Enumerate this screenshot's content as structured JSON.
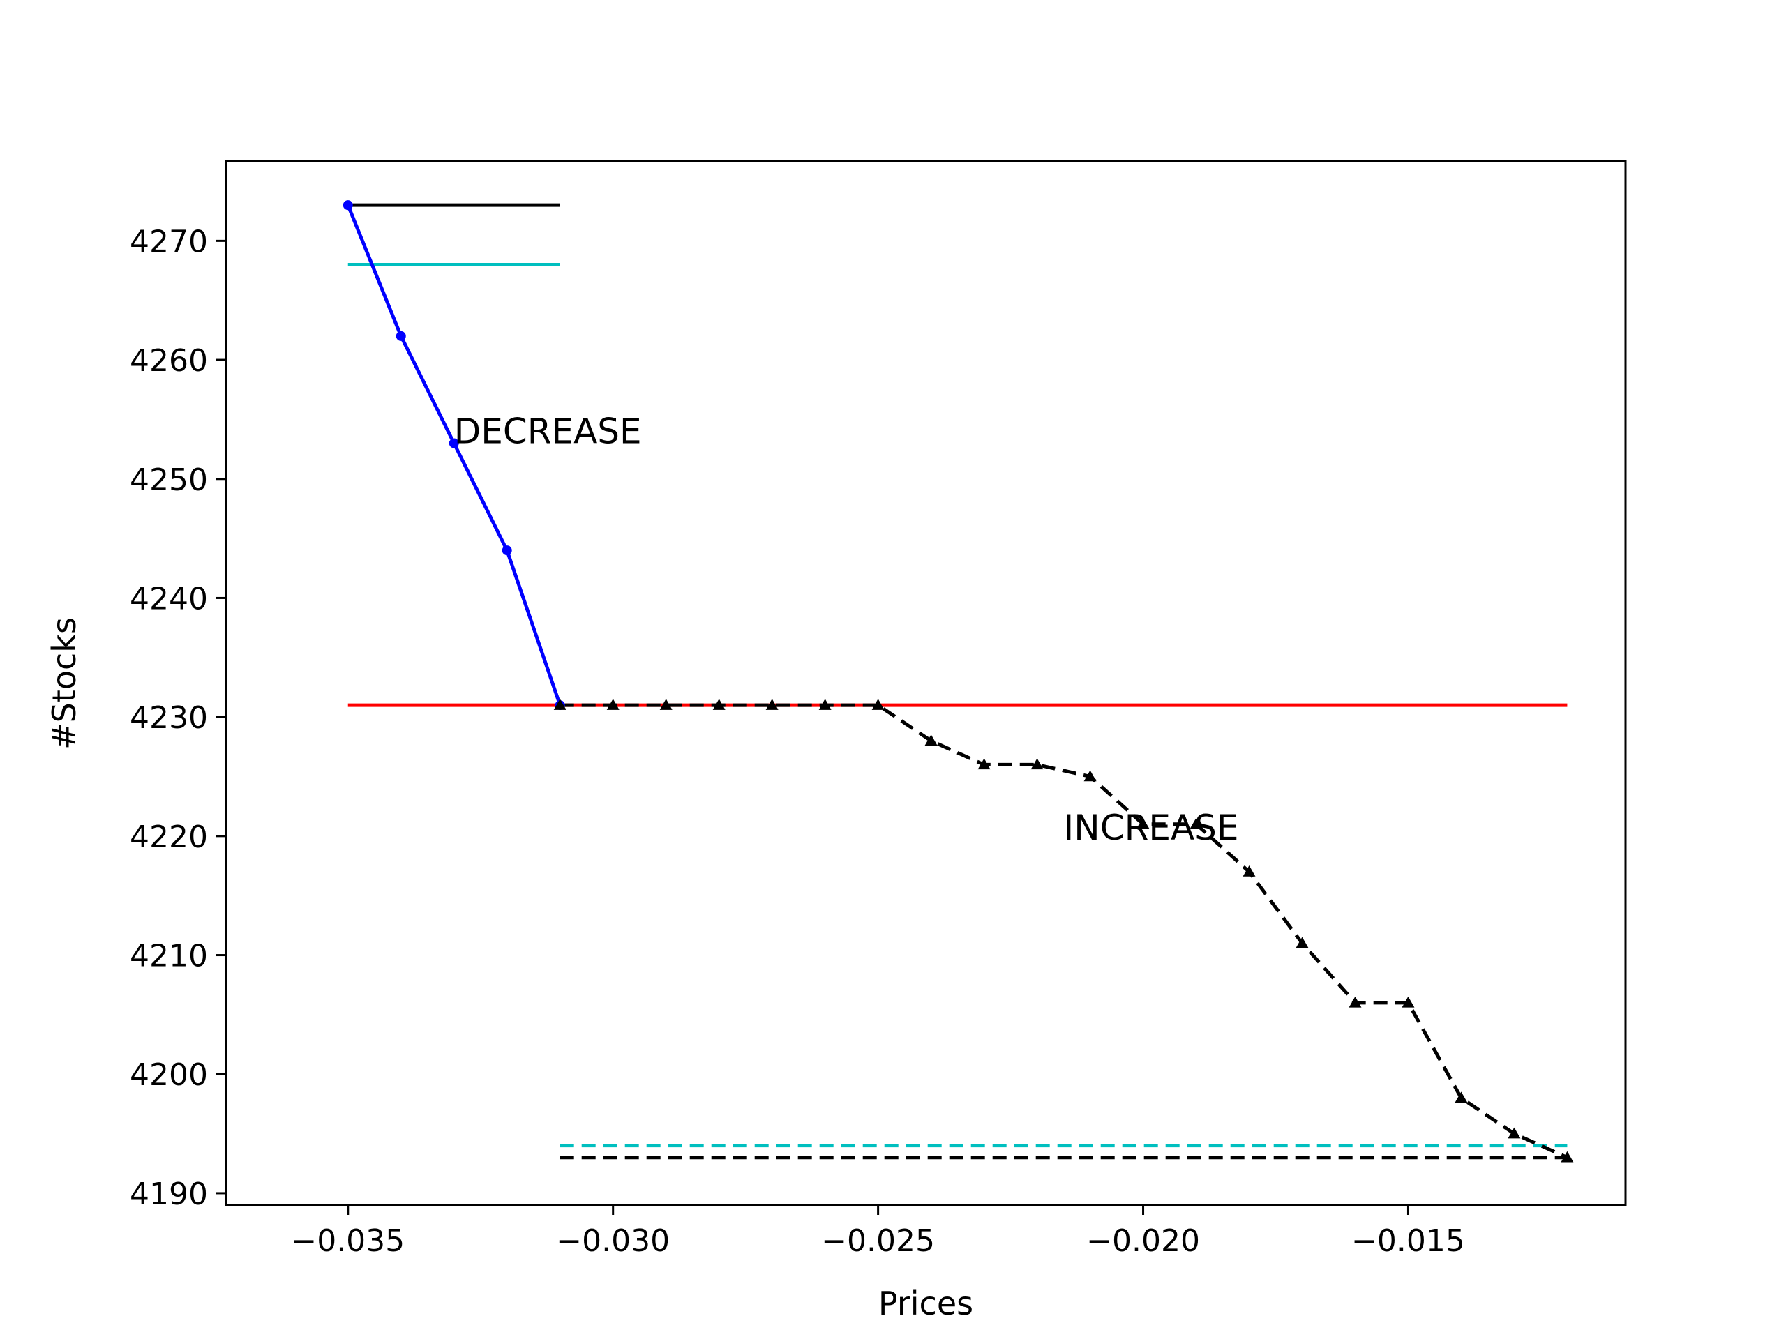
{
  "chart_data": {
    "type": "line",
    "title": "",
    "xlabel": "Prices",
    "ylabel": "#Stocks",
    "xlim": [
      -0.0373,
      -0.0109
    ],
    "ylim": [
      4189.0,
      4276.7
    ],
    "xticks": [
      -0.035,
      -0.03,
      -0.025,
      -0.02,
      -0.015
    ],
    "xtick_labels": [
      "−0.035",
      "−0.030",
      "−0.025",
      "−0.020",
      "−0.015"
    ],
    "yticks": [
      4190,
      4200,
      4210,
      4220,
      4230,
      4240,
      4250,
      4260,
      4270
    ],
    "ytick_labels": [
      "4190",
      "4200",
      "4210",
      "4220",
      "4230",
      "4240",
      "4250",
      "4260",
      "4270"
    ],
    "grid": false,
    "legend": "none",
    "series": [
      {
        "color": "#0000ff",
        "style": "solid",
        "marker": "dot",
        "x": [
          -0.035,
          -0.034,
          -0.033,
          -0.032,
          -0.031
        ],
        "y": [
          4273,
          4262,
          4253,
          4244,
          4231
        ]
      },
      {
        "color": "#000000",
        "style": "dashed",
        "marker": "triangle",
        "x": [
          -0.031,
          -0.03,
          -0.029,
          -0.028,
          -0.027,
          -0.026,
          -0.025,
          -0.024,
          -0.023,
          -0.022,
          -0.021,
          -0.02,
          -0.019,
          -0.018,
          -0.017,
          -0.016,
          -0.015,
          -0.014,
          -0.013,
          -0.012
        ],
        "y": [
          4231,
          4231,
          4231,
          4231,
          4231,
          4231,
          4231,
          4228,
          4226,
          4226,
          4225,
          4221,
          4221,
          4217,
          4211,
          4206,
          4206,
          4198,
          4195,
          4193
        ]
      }
    ],
    "reference_lines": [
      {
        "color": "#000000",
        "style": "solid",
        "x": [
          -0.035,
          -0.031
        ],
        "y": 4273
      },
      {
        "color": "#00bfbf",
        "style": "solid",
        "x": [
          -0.035,
          -0.031
        ],
        "y": 4268
      },
      {
        "color": "#ff0000",
        "style": "solid",
        "x": [
          -0.035,
          -0.012
        ],
        "y": 4231
      },
      {
        "color": "#00bfbf",
        "style": "dashed",
        "x": [
          -0.031,
          -0.012
        ],
        "y": 4194
      },
      {
        "color": "#000000",
        "style": "dashed",
        "x": [
          -0.031,
          -0.012
        ],
        "y": 4193
      }
    ],
    "annotations": [
      {
        "text": "DECREASE",
        "x": -0.033,
        "y": 4253
      },
      {
        "text": "INCREASE",
        "x": -0.0215,
        "y": 4219.7
      }
    ]
  }
}
